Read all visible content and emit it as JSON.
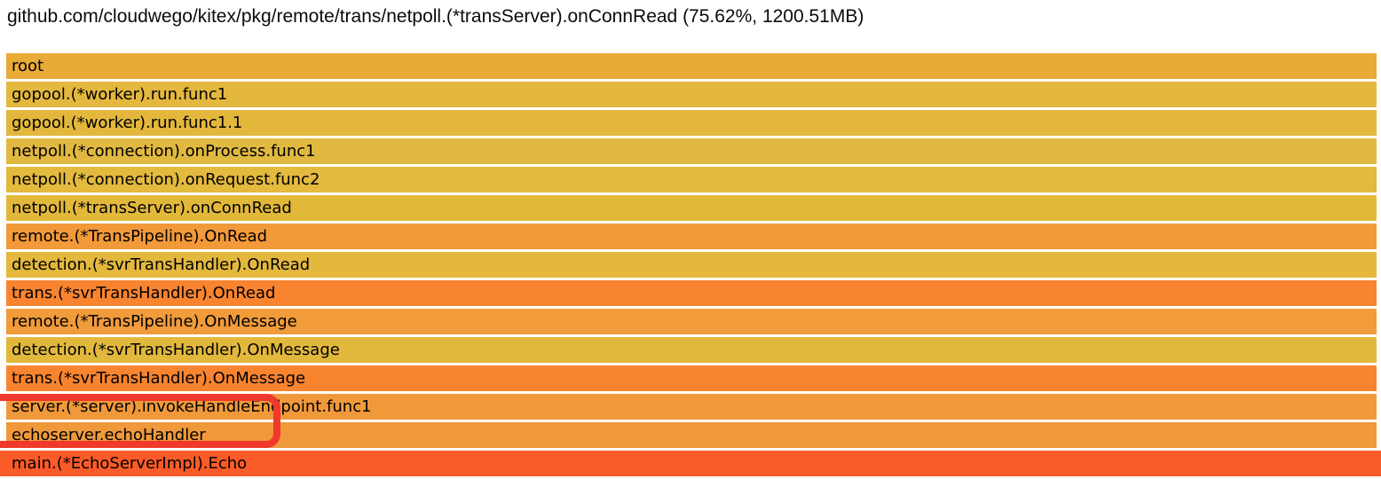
{
  "header": {
    "title": "github.com/cloudwego/kitex/pkg/remote/trans/netpoll.(*transServer).onConnRead (75.62%, 1200.51MB)"
  },
  "annotation": {
    "color": "#f0392c"
  },
  "flamegraph": {
    "rows": [
      {
        "label": "root",
        "color": "#e9aa38",
        "fullbleed": false
      },
      {
        "label": "gopool.(*worker).run.func1",
        "color": "#e4b83e",
        "fullbleed": false
      },
      {
        "label": "gopool.(*worker).run.func1.1",
        "color": "#e2b73c",
        "fullbleed": false
      },
      {
        "label": "netpoll.(*connection).onProcess.func1",
        "color": "#e1b940",
        "fullbleed": false
      },
      {
        "label": "netpoll.(*connection).onRequest.func2",
        "color": "#e3b93e",
        "fullbleed": false
      },
      {
        "label": "netpoll.(*transServer).onConnRead",
        "color": "#e2b83b",
        "fullbleed": false
      },
      {
        "label": "remote.(*TransPipeline).OnRead",
        "color": "#f2993a",
        "fullbleed": false
      },
      {
        "label": "detection.(*svrTransHandler).OnRead",
        "color": "#e3b83d",
        "fullbleed": false
      },
      {
        "label": "trans.(*svrTransHandler).OnRead",
        "color": "#f8842f",
        "fullbleed": false
      },
      {
        "label": "remote.(*TransPipeline).OnMessage",
        "color": "#f19b3b",
        "fullbleed": false
      },
      {
        "label": "detection.(*svrTransHandler).OnMessage",
        "color": "#e2b83c",
        "fullbleed": false
      },
      {
        "label": "trans.(*svrTransHandler).OnMessage",
        "color": "#f8842f",
        "fullbleed": false
      },
      {
        "label": "server.(*server).invokeHandleEndpoint.func1",
        "color": "#f0993a",
        "fullbleed": false
      },
      {
        "label": "echoserver.echoHandler",
        "color": "#f0993a",
        "fullbleed": false
      },
      {
        "label": "main.(*EchoServerImpl).Echo",
        "color": "#fb5b28",
        "fullbleed": true
      }
    ]
  },
  "chart_data": {
    "type": "flamegraph",
    "title": "github.com/cloudwego/kitex/pkg/remote/trans/netpoll.(*transServer).onConnRead (75.62%, 1200.51MB)",
    "selected_frame": {
      "name": "github.com/cloudwego/kitex/pkg/remote/trans/netpoll.(*transServer).onConnRead",
      "percent": 75.62,
      "size_mb": 1200.51
    },
    "stack_top_to_bottom": [
      "root",
      "gopool.(*worker).run.func1",
      "gopool.(*worker).run.func1.1",
      "netpoll.(*connection).onProcess.func1",
      "netpoll.(*connection).onRequest.func2",
      "netpoll.(*transServer).onConnRead",
      "remote.(*TransPipeline).OnRead",
      "detection.(*svrTransHandler).OnRead",
      "trans.(*svrTransHandler).OnRead",
      "remote.(*TransPipeline).OnMessage",
      "detection.(*svrTransHandler).OnMessage",
      "trans.(*svrTransHandler).OnMessage",
      "server.(*server).invokeHandleEndpoint.func1",
      "echoserver.echoHandler",
      "main.(*EchoServerImpl).Echo"
    ],
    "frame_width_pct": [
      100,
      100,
      100,
      100,
      100,
      100,
      100,
      100,
      100,
      100,
      100,
      100,
      100,
      100,
      100
    ],
    "layout": "horizontal full-width stacked frames, one per depth level, icicle orientation (root on top)",
    "annotation": "red rounded-rectangle highlight over 'server.(*server).invokeHandleEndpoint.func1' and 'echoserver.echoHandler' frames, clipped at left edge"
  }
}
